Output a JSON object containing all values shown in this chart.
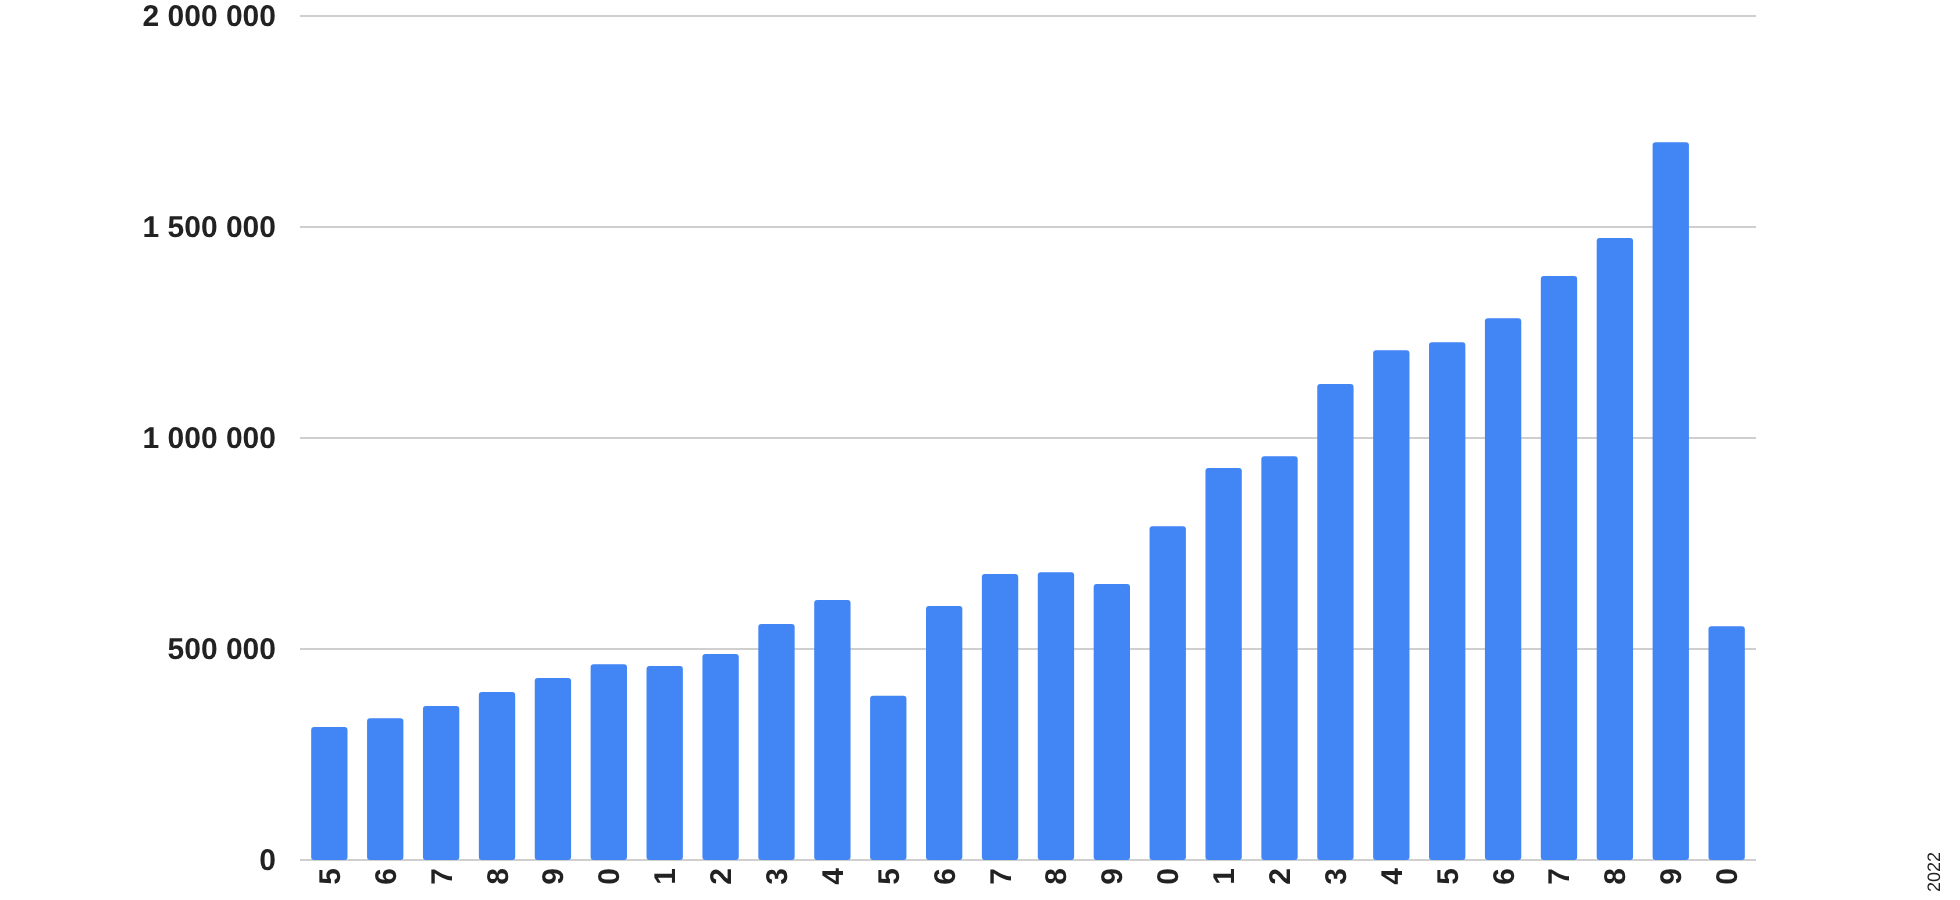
{
  "chart_data": {
    "type": "bar",
    "categories": [
      "5",
      "6",
      "7",
      "8",
      "9",
      "0",
      "1",
      "2",
      "3",
      "4",
      "5",
      "6",
      "7",
      "8",
      "9",
      "0",
      "1",
      "2",
      "3",
      "4",
      "5",
      "6",
      "7",
      "8",
      "9",
      "0"
    ],
    "values": [
      315000,
      336000,
      365000,
      398000,
      431000,
      464000,
      460000,
      488000,
      559000,
      616000,
      389000,
      602000,
      678000,
      682000,
      654000,
      791000,
      929000,
      957000,
      1128000,
      1208000,
      1227000,
      1284000,
      1384000,
      1474000,
      1701000,
      554000
    ],
    "color": "#4285f4",
    "ylim": [
      0,
      2000000
    ],
    "yticks": [
      {
        "value": 0,
        "label": "0"
      },
      {
        "value": 500000,
        "label": "500 000"
      },
      {
        "value": 1000000,
        "label": "1 000 000"
      },
      {
        "value": 1500000,
        "label": "1 500 000"
      },
      {
        "value": 2000000,
        "label": "2 000 000"
      }
    ],
    "grid": "y",
    "annotations": [
      "2022"
    ]
  }
}
